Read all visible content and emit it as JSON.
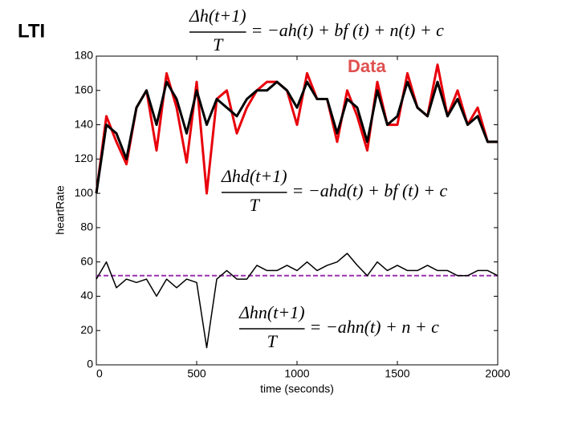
{
  "chart_data": {
    "type": "line",
    "title": "LTI",
    "annotation": "Data",
    "y_label": "heartRate",
    "x_label": "time (seconds)",
    "equations": [
      {
        "numerator": "Δh(t+1)",
        "denominator": "T",
        "rhs": "= −ah(t) + bf (t) + n(t) + c"
      },
      {
        "numerator": "Δhd(t+1)",
        "denominator": "T",
        "rhs": "= −ahd(t) + bf (t) + c"
      },
      {
        "numerator": "Δhn(t+1)",
        "denominator": "T",
        "rhs": "= −ahn(t) + n + c"
      }
    ],
    "xlim": [
      0,
      2000
    ],
    "ylim": [
      0,
      180
    ],
    "xticks": [
      0,
      500,
      1000,
      1500,
      2000
    ],
    "yticks": [
      0,
      20,
      40,
      60,
      80,
      100,
      120,
      140,
      160,
      180
    ],
    "grid": false,
    "x": [
      0,
      50,
      100,
      150,
      200,
      250,
      300,
      350,
      400,
      450,
      500,
      550,
      600,
      650,
      700,
      750,
      800,
      850,
      900,
      950,
      1000,
      1050,
      1100,
      1150,
      1200,
      1250,
      1300,
      1350,
      1400,
      1450,
      1500,
      1550,
      1600,
      1650,
      1700,
      1750,
      1800,
      1850,
      1900,
      1950,
      2000
    ],
    "series": [
      {
        "color": "#e8000b",
        "width": 3,
        "values": [
          100,
          145,
          130,
          117,
          150,
          160,
          125,
          170,
          150,
          118,
          165,
          100,
          155,
          160,
          135,
          150,
          160,
          165,
          165,
          160,
          140,
          170,
          155,
          155,
          130,
          160,
          145,
          125,
          165,
          140,
          140,
          170,
          150,
          145,
          175,
          145,
          160,
          140,
          150,
          130,
          130
        ]
      },
      {
        "color": "#000000",
        "width": 3,
        "values": [
          100,
          140,
          135,
          120,
          150,
          160,
          140,
          165,
          155,
          135,
          160,
          140,
          155,
          150,
          145,
          155,
          160,
          160,
          165,
          160,
          150,
          165,
          155,
          155,
          135,
          155,
          150,
          130,
          160,
          140,
          145,
          165,
          150,
          145,
          165,
          145,
          155,
          140,
          145,
          130,
          130
        ]
      },
      {
        "color": "#000000",
        "width": 1.5,
        "values": [
          50,
          60,
          45,
          50,
          48,
          50,
          40,
          50,
          45,
          50,
          48,
          10,
          50,
          55,
          50,
          50,
          58,
          55,
          55,
          58,
          55,
          60,
          55,
          58,
          60,
          65,
          58,
          52,
          60,
          55,
          58,
          55,
          55,
          58,
          55,
          55,
          52,
          52,
          55,
          55,
          52
        ]
      }
    ],
    "reference_line": {
      "value": 52,
      "color": "#9b30b0"
    }
  }
}
